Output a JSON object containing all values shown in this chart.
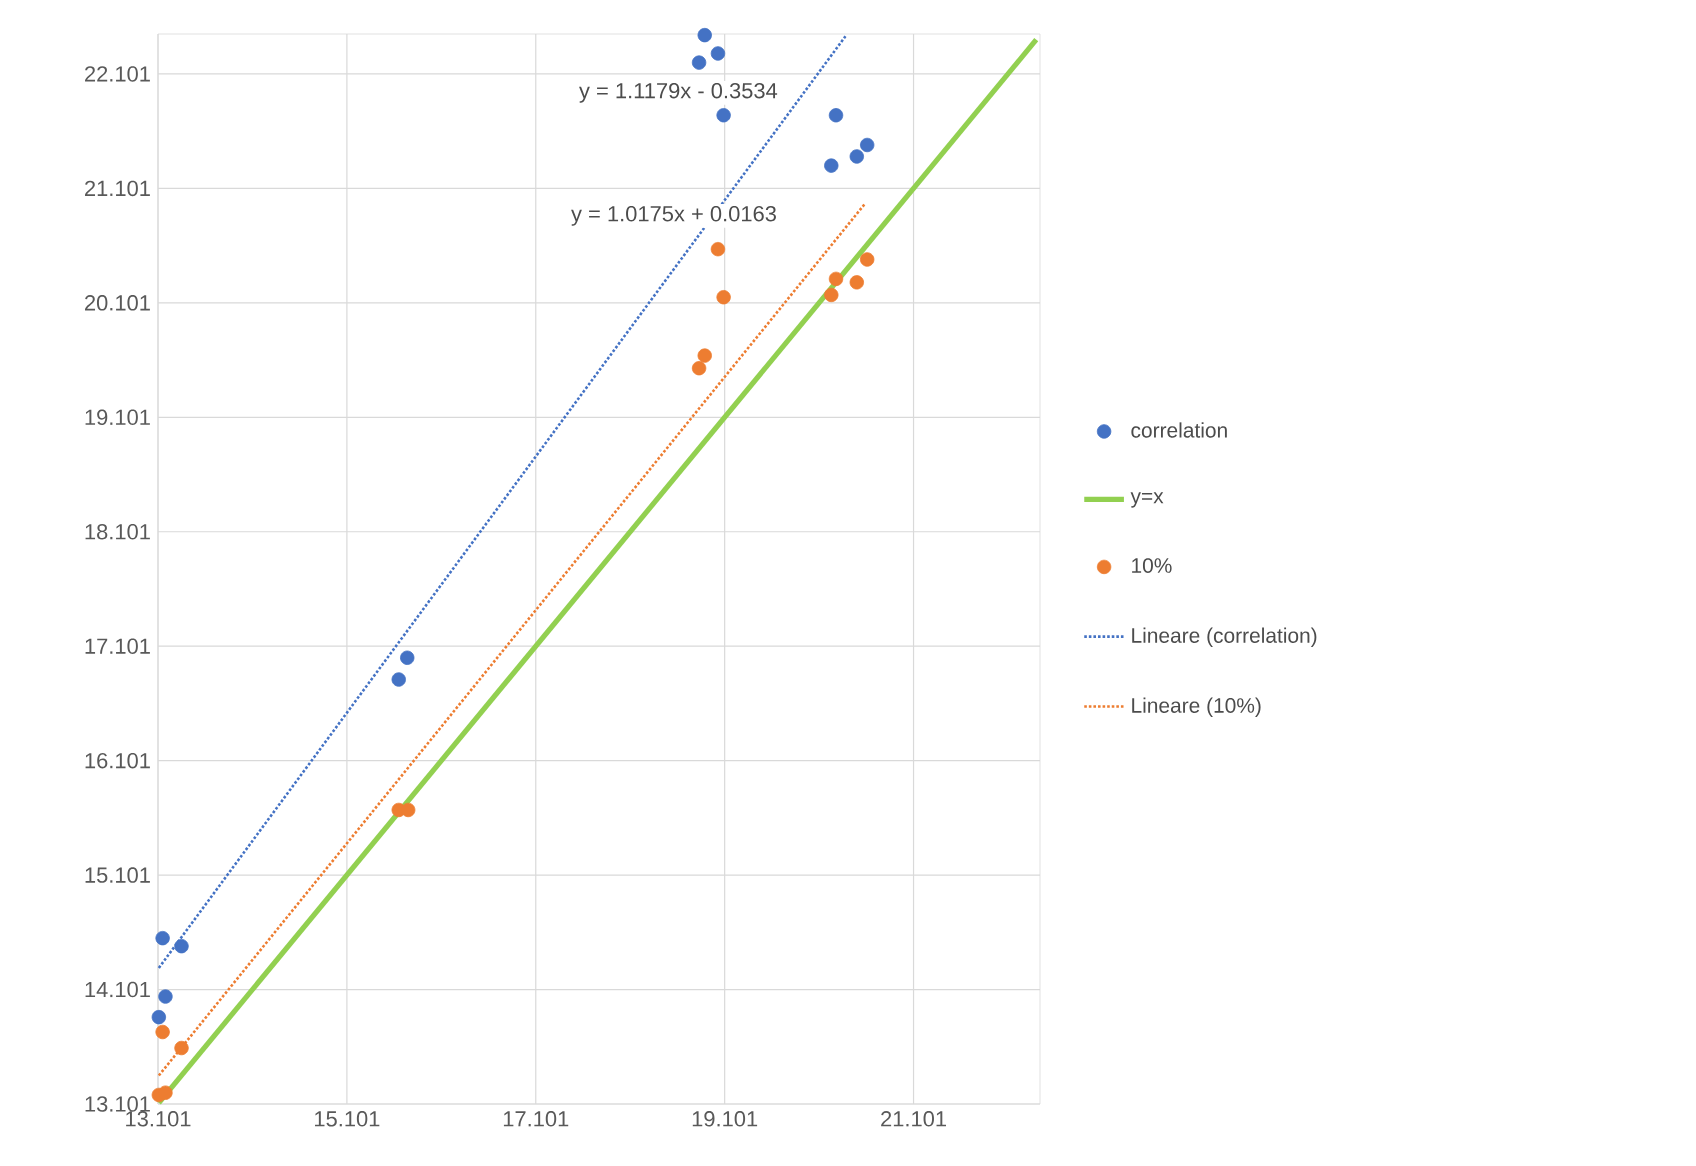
{
  "chart_data": {
    "type": "scatter",
    "xlim": [
      13.101,
      22.44
    ],
    "ylim": [
      13.101,
      22.45
    ],
    "xticks": [
      13.101,
      15.101,
      17.101,
      19.101,
      21.101
    ],
    "yticks": [
      13.101,
      14.101,
      15.101,
      16.101,
      17.101,
      18.101,
      19.101,
      20.101,
      21.101,
      22.101
    ],
    "grid": true,
    "legend": "right",
    "annotations": [
      "y = 1.1179x - 0.3534",
      "y = 1.0175x + 0.0163"
    ],
    "series": [
      {
        "name": "correlation",
        "marker": "circle",
        "color": "#4472c4",
        "x": [
          18.89,
          19.03,
          18.83,
          19.09,
          20.28,
          20.61,
          20.5,
          20.23,
          15.74,
          15.65,
          13.15,
          13.35,
          13.18,
          13.11
        ],
        "values": [
          22.44,
          22.28,
          22.2,
          21.74,
          21.74,
          21.48,
          21.38,
          21.3,
          17.0,
          16.81,
          14.55,
          14.48,
          14.04,
          13.86
        ]
      },
      {
        "name": "y=x",
        "type": "line",
        "color": "#92d050",
        "line_style": "solid",
        "x": [
          13.11,
          22.4
        ],
        "values": [
          13.11,
          22.4
        ]
      },
      {
        "name": "10%",
        "marker": "circle",
        "color": "#ed7d31",
        "x": [
          19.03,
          19.09,
          18.89,
          18.83,
          20.28,
          20.23,
          20.5,
          20.61,
          15.65,
          15.75,
          13.15,
          13.35,
          13.11,
          13.18
        ],
        "values": [
          20.57,
          20.15,
          19.64,
          19.53,
          20.31,
          20.17,
          20.28,
          20.48,
          15.67,
          15.67,
          13.73,
          13.59,
          13.18,
          13.2
        ]
      },
      {
        "name": "Lineare (correlation)",
        "type": "line",
        "color": "#4472c4",
        "line_style": "dotted",
        "x": [
          13.11,
          20.38
        ],
        "values": [
          14.29,
          22.43
        ]
      },
      {
        "name": "Lineare (10%)",
        "type": "line",
        "color": "#ed7d31",
        "line_style": "dotted",
        "x": [
          13.11,
          20.58
        ],
        "values": [
          13.35,
          20.96
        ]
      }
    ]
  }
}
